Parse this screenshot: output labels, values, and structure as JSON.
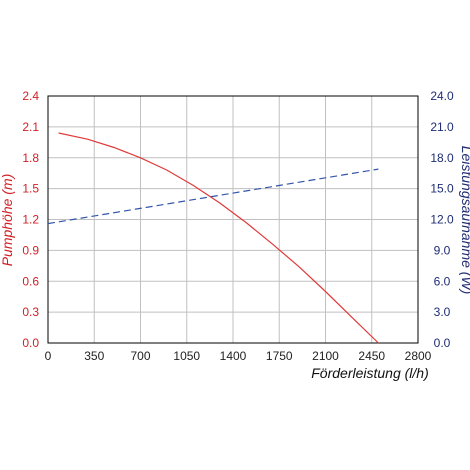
{
  "chart_data": {
    "type": "line",
    "xlabel": "Förderleistung (l/h)",
    "ylabel_left": "Pumphöhe (m)",
    "ylabel_right": "Leistungsaufnahme (W)",
    "xlim": [
      0,
      2800
    ],
    "ylim_left": [
      0,
      2.4
    ],
    "ylim_right": [
      0,
      24
    ],
    "x_ticks": [
      "0",
      "350",
      "700",
      "1050",
      "1400",
      "1750",
      "2100",
      "2450",
      "2800"
    ],
    "y_left_ticks": [
      "0.0",
      "0.3",
      "0.6",
      "0.9",
      "1.2",
      "1.5",
      "1.8",
      "2.1",
      "2.4"
    ],
    "y_right_ticks": [
      "0.0",
      "3.0",
      "6.0",
      "9.0",
      "12.0",
      "15.0",
      "18.0",
      "21.0",
      "24.0"
    ],
    "grid": true,
    "series": [
      {
        "axis": "left",
        "style": "solid",
        "color": "#e03a3a",
        "x": [
          80,
          300,
          500,
          700,
          900,
          1100,
          1300,
          1500,
          1700,
          1900,
          2100,
          2300,
          2500
        ],
        "y": [
          2.04,
          1.98,
          1.9,
          1.8,
          1.68,
          1.53,
          1.36,
          1.17,
          0.96,
          0.74,
          0.5,
          0.25,
          0.0
        ]
      },
      {
        "axis": "right",
        "style": "dashed",
        "color": "#3355aa",
        "x": [
          0,
          2500
        ],
        "y": [
          11.6,
          16.9
        ]
      }
    ]
  },
  "colors": {
    "left_axis": "#d21f26",
    "right_axis": "#1f2d73",
    "grid": "#c0c0c0"
  }
}
